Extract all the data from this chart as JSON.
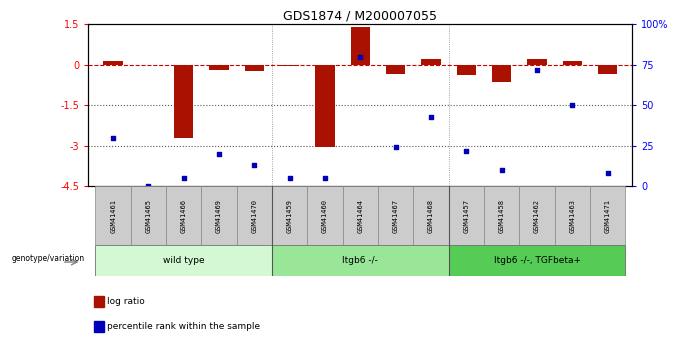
{
  "title": "GDS1874 / M200007055",
  "samples": [
    "GSM41461",
    "GSM41465",
    "GSM41466",
    "GSM41469",
    "GSM41470",
    "GSM41459",
    "GSM41460",
    "GSM41464",
    "GSM41467",
    "GSM41468",
    "GSM41457",
    "GSM41458",
    "GSM41462",
    "GSM41463",
    "GSM41471"
  ],
  "log_ratio": [
    0.12,
    0.0,
    -2.7,
    -0.18,
    -0.22,
    -0.05,
    -3.05,
    1.38,
    -0.35,
    0.22,
    -0.4,
    -0.65,
    0.22,
    0.12,
    -0.35
  ],
  "percentile_rank": [
    30,
    0,
    5,
    20,
    13,
    5,
    5,
    80,
    24,
    43,
    22,
    10,
    72,
    50,
    8
  ],
  "groups": [
    {
      "label": "wild type",
      "start": 0,
      "end": 5,
      "color": "#d4f7d4"
    },
    {
      "label": "Itgb6 -/-",
      "start": 5,
      "end": 10,
      "color": "#99e699"
    },
    {
      "label": "Itgb6 -/-, TGFbeta+",
      "start": 10,
      "end": 15,
      "color": "#55cc55"
    }
  ],
  "bar_color": "#aa1100",
  "dot_color": "#0000bb",
  "dashed_line_color": "#cc0000",
  "dotted_line_color": "#555555",
  "ylim_left": [
    -4.5,
    1.5
  ],
  "ylim_right": [
    0,
    100
  ],
  "yticks_left": [
    -4.5,
    -3.0,
    -1.5,
    0.0,
    1.5
  ],
  "yticks_right": [
    0,
    25,
    50,
    75,
    100
  ],
  "ytick_labels_left": [
    "-4.5",
    "-3",
    "-1.5",
    "0",
    "1.5"
  ],
  "ytick_labels_right": [
    "0",
    "25",
    "50",
    "75",
    "100%"
  ],
  "hlines": [
    -1.5,
    -3.0
  ],
  "bar_width": 0.55,
  "genotype_label": "genotype/variation",
  "legend_items": [
    {
      "label": "log ratio",
      "color": "#aa1100"
    },
    {
      "label": "percentile rank within the sample",
      "color": "#0000bb"
    }
  ],
  "group_dividers": [
    5,
    10
  ]
}
